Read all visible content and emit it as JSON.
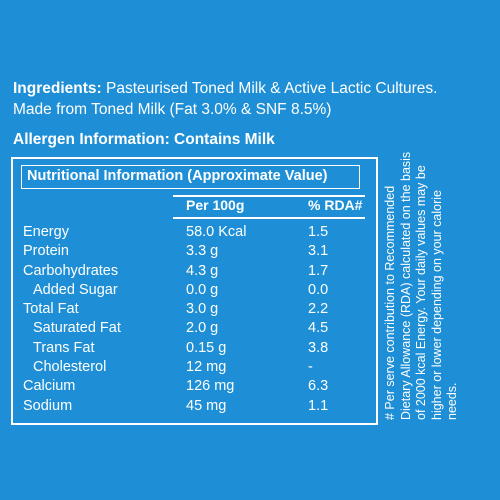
{
  "ingredients": {
    "label": "Ingredients:",
    "text": "Pasteurised Toned Milk & Active Lactic Cultures.",
    "line2": "Made from Toned Milk (Fat 3.0% & SNF 8.5%)"
  },
  "allergen": "Allergen Information: Contains Milk",
  "nutrition": {
    "title": "Nutritional Information (Approximate Value)",
    "col_per": "Per 100g",
    "col_rda": "% RDA#",
    "rows": [
      {
        "name": "Energy",
        "per": "58.0 Kcal",
        "rda": "1.5",
        "indent": false
      },
      {
        "name": "Protein",
        "per": "3.3 g",
        "rda": "3.1",
        "indent": false
      },
      {
        "name": "Carbohydrates",
        "per": "4.3 g",
        "rda": "1.7",
        "indent": false
      },
      {
        "name": "Added Sugar",
        "per": "0.0 g",
        "rda": "0.0",
        "indent": true
      },
      {
        "name": "Total Fat",
        "per": "3.0 g",
        "rda": "2.2",
        "indent": false
      },
      {
        "name": "Saturated Fat",
        "per": "2.0 g",
        "rda": "4.5",
        "indent": true
      },
      {
        "name": "Trans Fat",
        "per": "0.15 g",
        "rda": "3.8",
        "indent": true
      },
      {
        "name": "Cholesterol",
        "per": "12 mg",
        "rda": "-",
        "indent": true
      },
      {
        "name": "Calcium",
        "per": "126 mg",
        "rda": "6.3",
        "indent": false
      },
      {
        "name": "Sodium",
        "per": "45 mg",
        "rda": "1.1",
        "indent": false
      }
    ]
  },
  "footnote": "# Per serve contribution to Recommended Dietary Allowance (RDA) calculated on the basis of 2000 kcal Energy. Your daily values may be higher or lower depending on your calorie needs.",
  "colors": {
    "background": "#1e8fd6",
    "text": "#ffffff"
  }
}
